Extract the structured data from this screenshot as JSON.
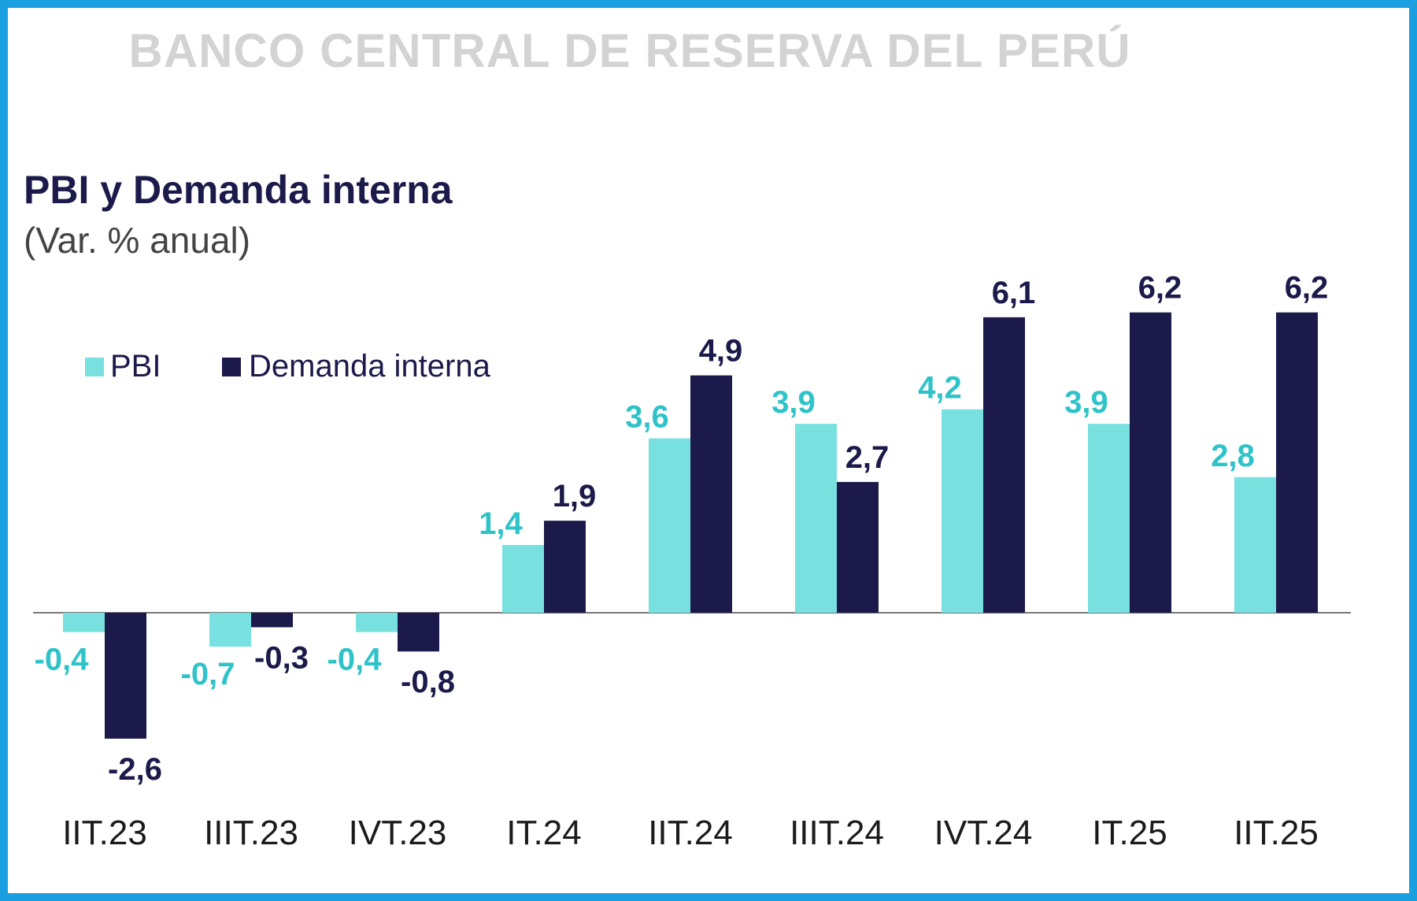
{
  "header": {
    "text": "BANCO CENTRAL DE RESERVA DEL PERÚ"
  },
  "colors": {
    "frame": "#1aa0e0",
    "pbi": "#79e0e0",
    "demanda": "#1c1a4a",
    "pbi_label": "#2ec3c8",
    "header_text": "#d3d3d3"
  },
  "chart_data": {
    "type": "bar",
    "title": "PBI y Demanda interna",
    "subtitle": "(Var. % anual)",
    "categories": [
      "IIT.23",
      "IIIT.23",
      "IVT.23",
      "IT.24",
      "IIT.24",
      "IIIT.24",
      "IVT.24",
      "IT.25",
      "IIT.25"
    ],
    "series": [
      {
        "name": "PBI",
        "color": "#79e0e0",
        "label_color": "#2ec3c8",
        "values": [
          -0.4,
          -0.7,
          -0.4,
          1.4,
          3.6,
          3.9,
          4.2,
          3.9,
          2.8
        ],
        "labels": [
          "-0,4",
          "-0,7",
          "-0,4",
          "1,4",
          "3,6",
          "3,9",
          "4,2",
          "3,9",
          "2,8"
        ]
      },
      {
        "name": "Demanda interna",
        "color": "#1c1a4a",
        "label_color": "#1c1a4a",
        "values": [
          -2.6,
          -0.3,
          -0.8,
          1.9,
          4.9,
          2.7,
          6.1,
          6.2,
          6.2
        ],
        "labels": [
          "-2,6",
          "-0,3",
          "-0,8",
          "1,9",
          "4,9",
          "2,7",
          "6,1",
          "6,2",
          "6,2"
        ]
      }
    ],
    "ylim": [
      -2.6,
      6.2
    ],
    "legend_position": "top-left",
    "grid": false
  }
}
